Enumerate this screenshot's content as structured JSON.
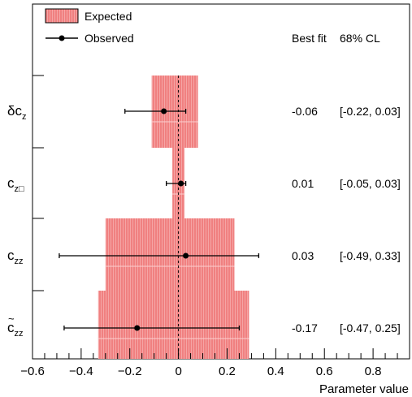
{
  "chart_data": {
    "type": "scatter",
    "title": "",
    "xlabel": "Parameter value",
    "ylabel": "",
    "xlim": [
      -0.6,
      0.95
    ],
    "xticks": [
      "-0.6",
      "-0.4",
      "-0.2",
      "0",
      "0.2",
      "0.4",
      "0.6",
      "0.8"
    ],
    "legend": {
      "placement": "top-left",
      "entries": [
        {
          "label": "Expected",
          "symbol": "box",
          "color": "#f08080"
        },
        {
          "label": "Observed",
          "symbol": "marker-line",
          "color": "#000000"
        }
      ]
    },
    "table_headers": {
      "best_fit": "Best fit",
      "cl": "68% CL"
    },
    "parameters": [
      {
        "main": "δc",
        "sub": "z",
        "tilde": false,
        "best_fit": -0.06,
        "obs_low": -0.22,
        "obs_high": 0.03,
        "best_fit_text": "-0.06",
        "cl_text": "[-0.22, 0.03]",
        "exp_low": -0.11,
        "exp_high": 0.08
      },
      {
        "main": "c",
        "sub": "z□",
        "tilde": false,
        "best_fit": 0.01,
        "obs_low": -0.05,
        "obs_high": 0.03,
        "best_fit_text": "0.01",
        "cl_text": "[-0.05, 0.03]",
        "exp_low": -0.025,
        "exp_high": 0.025
      },
      {
        "main": "c",
        "sub": "zz",
        "tilde": false,
        "best_fit": 0.03,
        "obs_low": -0.49,
        "obs_high": 0.33,
        "best_fit_text": "0.03",
        "cl_text": "[-0.49, 0.33]",
        "exp_low": -0.3,
        "exp_high": 0.23
      },
      {
        "main": "c",
        "sub": "zz",
        "tilde": true,
        "best_fit": -0.17,
        "obs_low": -0.47,
        "obs_high": 0.25,
        "best_fit_text": "-0.17",
        "cl_text": "[-0.47, 0.25]",
        "exp_low": -0.33,
        "exp_high": 0.29
      }
    ],
    "reference_line": 0,
    "grid": false,
    "colors": {
      "expected_fill": "#f08080",
      "expected_line": "#f4a3a3",
      "marker": "#000000"
    }
  }
}
